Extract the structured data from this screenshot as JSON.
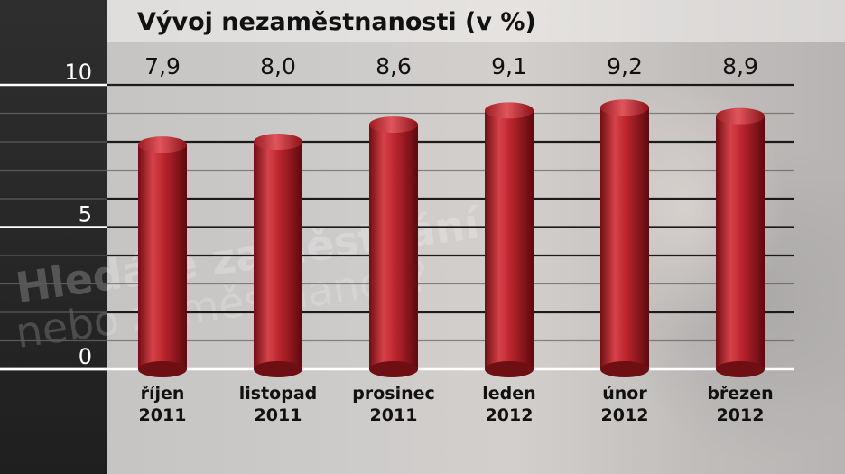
{
  "background_text": [
    "Hledáte zaměstnání",
    "nebo zaměstnance?"
  ],
  "chart_data": {
    "type": "bar",
    "title": "Vývoj nezaměstnanosti (v %)",
    "categories": [
      [
        "říjen",
        "2011"
      ],
      [
        "listopad",
        "2011"
      ],
      [
        "prosinec",
        "2011"
      ],
      [
        "leden",
        "2012"
      ],
      [
        "únor",
        "2012"
      ],
      [
        "březen",
        "2012"
      ]
    ],
    "values": [
      7.9,
      8.0,
      8.6,
      9.1,
      9.2,
      8.9
    ],
    "value_labels": [
      "7,9",
      "8,0",
      "8,6",
      "9,1",
      "9,2",
      "8,9"
    ],
    "y_ticks": [
      0,
      5,
      10
    ],
    "y_tick_labels": [
      "0",
      "5",
      "10"
    ],
    "ylim": [
      0,
      11
    ],
    "grid": true,
    "bar_shape": "cylinder",
    "bar_color": "#b8232b",
    "xlabel": "",
    "ylabel": ""
  }
}
